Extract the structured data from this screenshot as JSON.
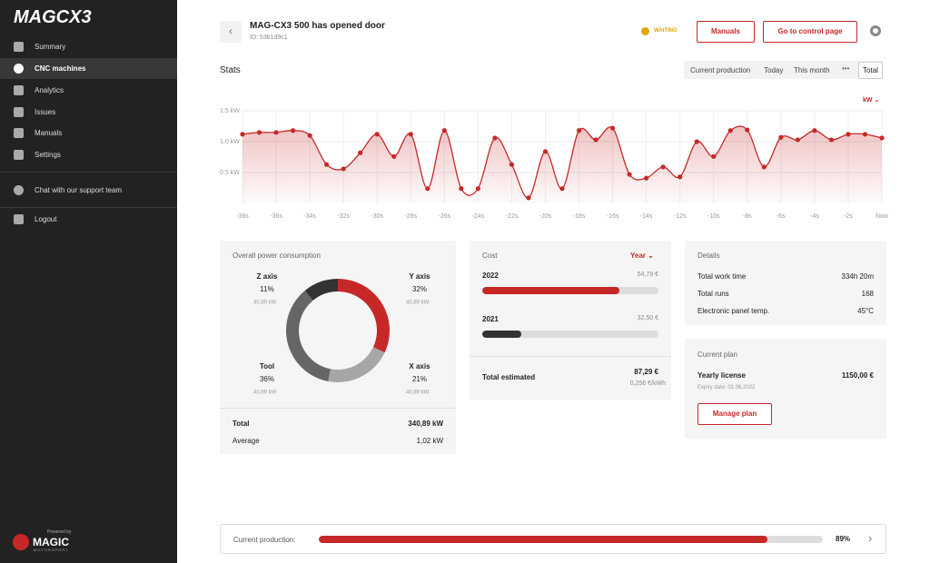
{
  "sidebar": {
    "brand": "MAGCX3",
    "nav": [
      "Summary",
      "CNC machines",
      "Analytics",
      "Issues",
      "Manuals",
      "Settings"
    ],
    "support": "Chat with our support team",
    "logout": "Logout",
    "powered": "Powered by",
    "footer_brand": "MAGIC",
    "footer_sub": "MOTORSPORT"
  },
  "header": {
    "title": "MAG-CX3 500 has opened door",
    "id": "ID: 53b1d9c1",
    "status": "WAITING",
    "buttons": [
      "Manuals",
      "Go to control page"
    ]
  },
  "stats": {
    "title": "Stats",
    "tabs": [
      "Current production",
      "Today",
      "This month",
      "Total"
    ],
    "unit": "kW"
  },
  "chart_data": [
    {
      "type": "line",
      "color": "#c62828",
      "grid": true,
      "x": [
        -38,
        -37,
        -36,
        -35,
        -34,
        -33,
        -32,
        -31,
        -30,
        -29,
        -28,
        -27,
        -26,
        -25,
        -24,
        -23,
        -22,
        -21,
        -20,
        -19,
        -18,
        -17,
        -16,
        -15,
        -14,
        -13,
        -12,
        -11,
        -10,
        -9,
        -8,
        -7,
        -6,
        -5,
        -4,
        -3,
        -2,
        -1,
        0
      ],
      "values": [
        1.12,
        1.15,
        1.15,
        1.18,
        1.1,
        0.63,
        0.56,
        0.82,
        1.12,
        0.76,
        1.12,
        0.24,
        1.18,
        0.24,
        0.24,
        1.06,
        0.63,
        0.09,
        0.84,
        0.24,
        1.18,
        1.03,
        1.22,
        0.47,
        0.41,
        0.59,
        0.43,
        1.0,
        0.76,
        1.18,
        1.19,
        0.59,
        1.07,
        1.03,
        1.18,
        1.03,
        1.12,
        1.12,
        1.06
      ],
      "xlim": [
        -38,
        0
      ],
      "ylim": [
        0,
        1.5
      ],
      "xticks": [
        {
          "value": -38,
          "label": "-38s"
        },
        {
          "value": -36,
          "label": "-36s"
        },
        {
          "value": -34,
          "label": "-34s"
        },
        {
          "value": -32,
          "label": "-32s"
        },
        {
          "value": -30,
          "label": "-30s"
        },
        {
          "value": -28,
          "label": "-28s"
        },
        {
          "value": -26,
          "label": "-26s"
        },
        {
          "value": -24,
          "label": "-24s"
        },
        {
          "value": -22,
          "label": "-22s"
        },
        {
          "value": -20,
          "label": "-20s"
        },
        {
          "value": -18,
          "label": "-18s"
        },
        {
          "value": -16,
          "label": "-16s"
        },
        {
          "value": -14,
          "label": "-14s"
        },
        {
          "value": -12,
          "label": "-12s"
        },
        {
          "value": -10,
          "label": "-10s"
        },
        {
          "value": -8,
          "label": "-8s"
        },
        {
          "value": -6,
          "label": "-6s"
        },
        {
          "value": -4,
          "label": "-4s"
        },
        {
          "value": -2,
          "label": "-2s"
        },
        {
          "value": 0,
          "label": "Now"
        }
      ],
      "yticks": [
        {
          "value": 0.5,
          "label": "0.5 kW"
        },
        {
          "value": 1.0,
          "label": "1.0 kW"
        },
        {
          "value": 1.5,
          "label": "1.5 kW"
        }
      ]
    },
    {
      "type": "pie",
      "title": "Overall power consumption",
      "categories": [
        "Y axis",
        "X axis",
        "Tool",
        "Z axis"
      ],
      "values": [
        32,
        21,
        36,
        11
      ],
      "value_labels": [
        "32%",
        "21%",
        "36%",
        "11%"
      ],
      "sublabels": [
        "40,89 kW",
        "40,89 kW",
        "40,89 kW",
        "40,89 kW"
      ],
      "colors": [
        "#c62828",
        "#a6a6a6",
        "#666666",
        "#333333"
      ]
    }
  ],
  "power": {
    "total_label": "Total",
    "total": "340,89 kW",
    "average_label": "Average",
    "average": "1,02 kW"
  },
  "cost": {
    "title": "Cost",
    "selector": "Year",
    "rows": [
      {
        "year": "2022",
        "amount": "54,79 €",
        "percent": 78
      },
      {
        "year": "2021",
        "amount": "32,50 €",
        "percent": 22
      }
    ],
    "total_label": "Total estimated",
    "total": "87,29 €",
    "rate": "0,256 €/kWh"
  },
  "details": {
    "title": "Details",
    "rows": [
      [
        "Total work time",
        "334h 20m"
      ],
      [
        "Total runs",
        "168"
      ],
      [
        "Electronic panel temp.",
        "45°C"
      ]
    ]
  },
  "plan": {
    "title": "Current plan",
    "name": "Yearly license",
    "price": "1150,00 €",
    "expiry": "Expiry date: 01.06.2022",
    "button": "Manage plan"
  },
  "production": {
    "label": "Current production:",
    "value": 89,
    "value_label": "89%"
  }
}
